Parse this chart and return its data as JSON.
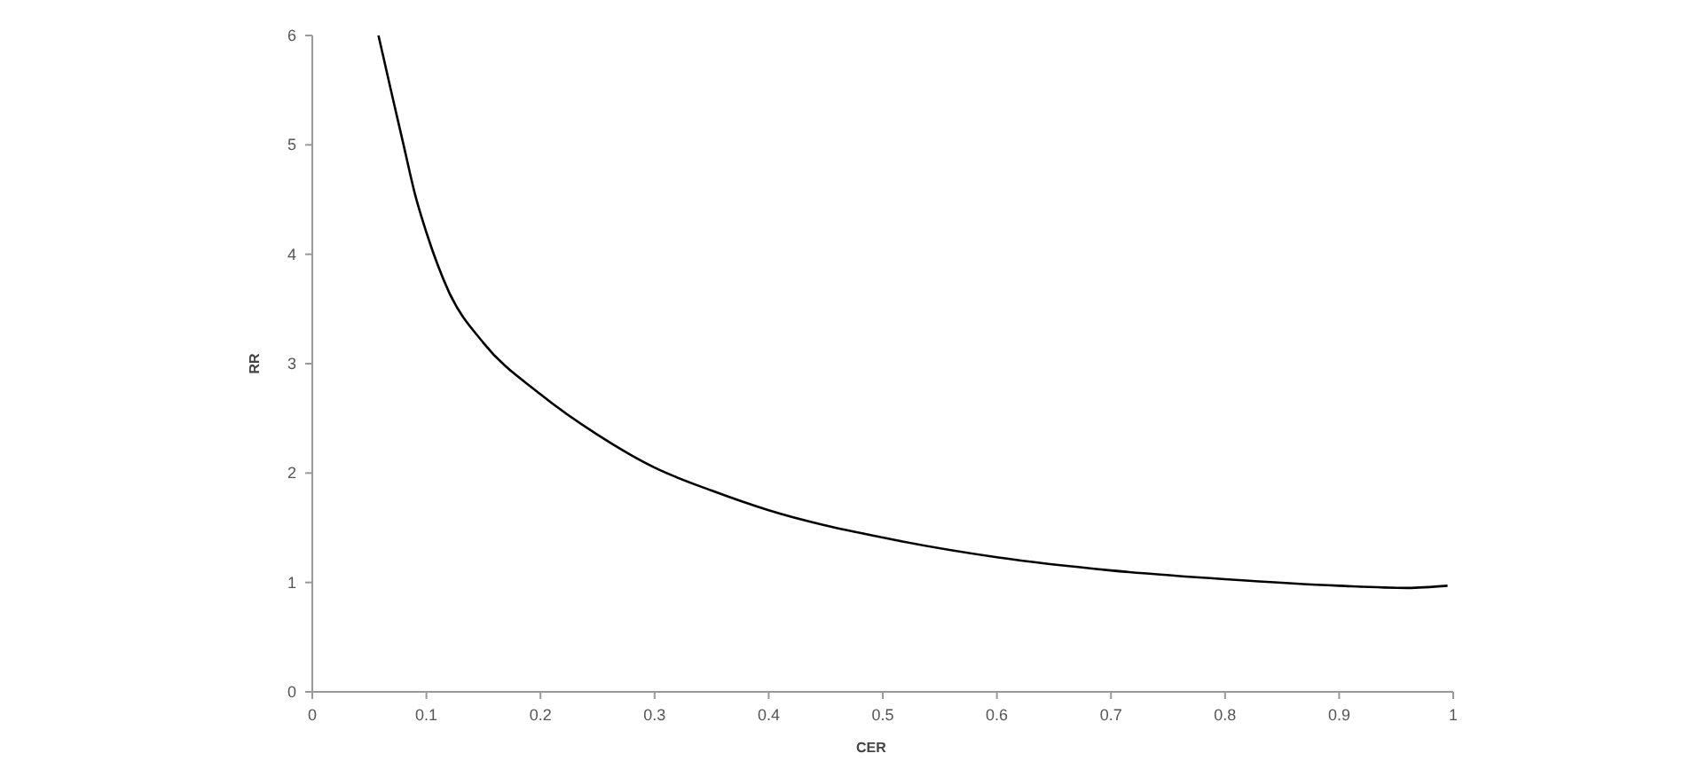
{
  "chart_data": {
    "type": "line",
    "xlabel": "CER",
    "ylabel": "RR",
    "xlim": [
      0,
      1
    ],
    "ylim": [
      0,
      6
    ],
    "xticks": [
      0,
      0.1,
      0.2,
      0.3,
      0.4,
      0.5,
      0.6,
      0.7,
      0.8,
      0.9,
      1
    ],
    "yticks": [
      0,
      1,
      2,
      3,
      4,
      5,
      6
    ],
    "grid": false,
    "marker": "none",
    "line_style": "solid",
    "series": [
      {
        "color": "#000000",
        "x": [
          0.058,
          0.07,
          0.08,
          0.09,
          0.1,
          0.12,
          0.15,
          0.2,
          0.25,
          0.3,
          0.35,
          0.4,
          0.5,
          0.6,
          0.7,
          0.8,
          0.9,
          0.96,
          0.995
        ],
        "values": [
          6,
          5.45,
          5.0,
          4.55,
          4.2,
          3.65,
          3.19,
          2.72,
          2.35,
          2.05,
          1.84,
          1.66,
          1.41,
          1.23,
          1.11,
          1.03,
          0.97,
          0.95,
          0.97
        ]
      }
    ]
  }
}
